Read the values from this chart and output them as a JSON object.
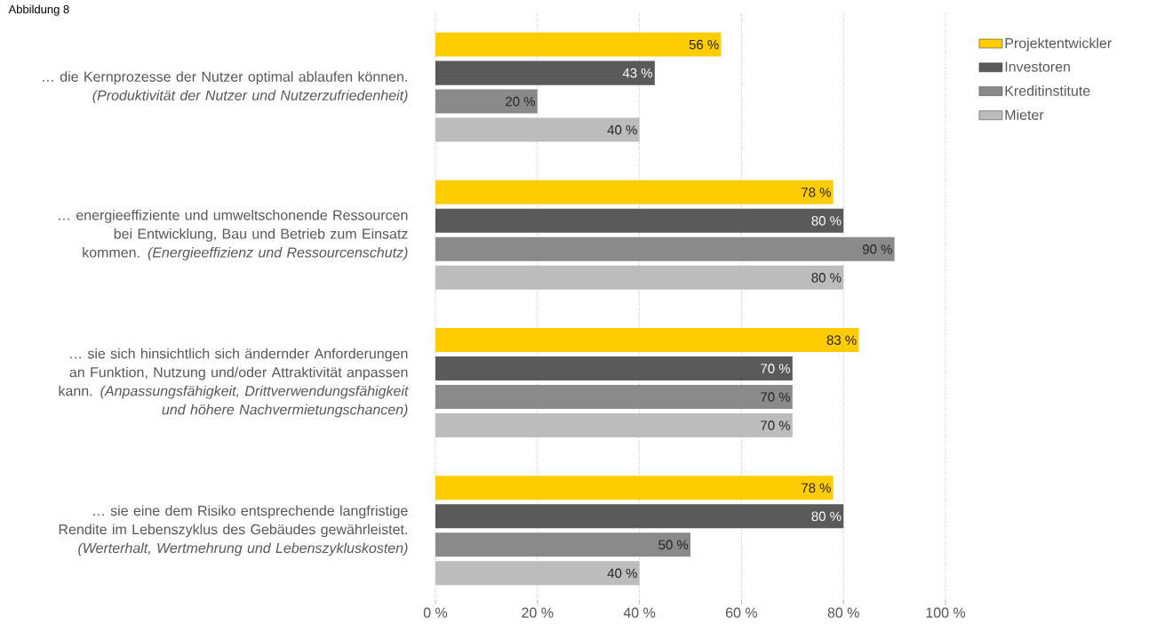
{
  "chart_data": {
    "type": "bar",
    "orientation": "horizontal",
    "title": "Abbildung 8",
    "categories": [
      "… die Kernprozesse der Nutzer optimal ablaufen können. *(Produktivität der Nutzer und Nutzerzufriedenheit)*",
      "… energieeffiziente und umweltschonende Ressourcen bei Entwicklung, Bau und Betrieb zum Einsatz kommen. *(Energieeffizienz und Ressourcenschutz)*",
      "… sie sich hinsichtlich sich ändernder Anforderungen an Funktion, Nutzung und/oder Attraktivität anpassen kann. *(Anpassungsfähigkeit, Drittverwendungsfähigkeit und höhere Nachvermietungschancen)*",
      "… sie eine dem Risiko entsprechende langfristige Rendite im Lebenszyklus des Gebäudes gewährleistet. *(Werterhalt, Wertmehrung und Lebenszykluskosten)*"
    ],
    "series": [
      {
        "name": "Projektentwickler",
        "color": "#ffcc00",
        "values": [
          56,
          78,
          83,
          78
        ],
        "value_labels": [
          "56 %",
          "78 %",
          "83 %",
          "78 %"
        ]
      },
      {
        "name": "Investoren",
        "color": "#5a5a5a",
        "values": [
          43,
          80,
          70,
          80
        ],
        "value_labels": [
          "43 %",
          "80 %",
          "70 %",
          "80 %"
        ]
      },
      {
        "name": "Kreditinstitute",
        "color": "#8a8a8a",
        "values": [
          20,
          90,
          70,
          50
        ],
        "value_labels": [
          "20 %",
          "90 %",
          "70 %",
          "50 %"
        ]
      },
      {
        "name": "Mieter",
        "color": "#bcbcbc",
        "values": [
          40,
          80,
          70,
          40
        ],
        "value_labels": [
          "40 %",
          "80 %",
          "70 %",
          "40 %"
        ]
      }
    ],
    "xlim": [
      0,
      100
    ],
    "xticks": [
      {
        "value": 0,
        "label": "0 %"
      },
      {
        "value": 20,
        "label": "20 %"
      },
      {
        "value": 40,
        "label": "40 %"
      },
      {
        "value": 60,
        "label": "60 %"
      },
      {
        "value": 80,
        "label": "80 %"
      },
      {
        "value": 100,
        "label": "100 %"
      }
    ],
    "grid": "x",
    "legend": "top right"
  }
}
